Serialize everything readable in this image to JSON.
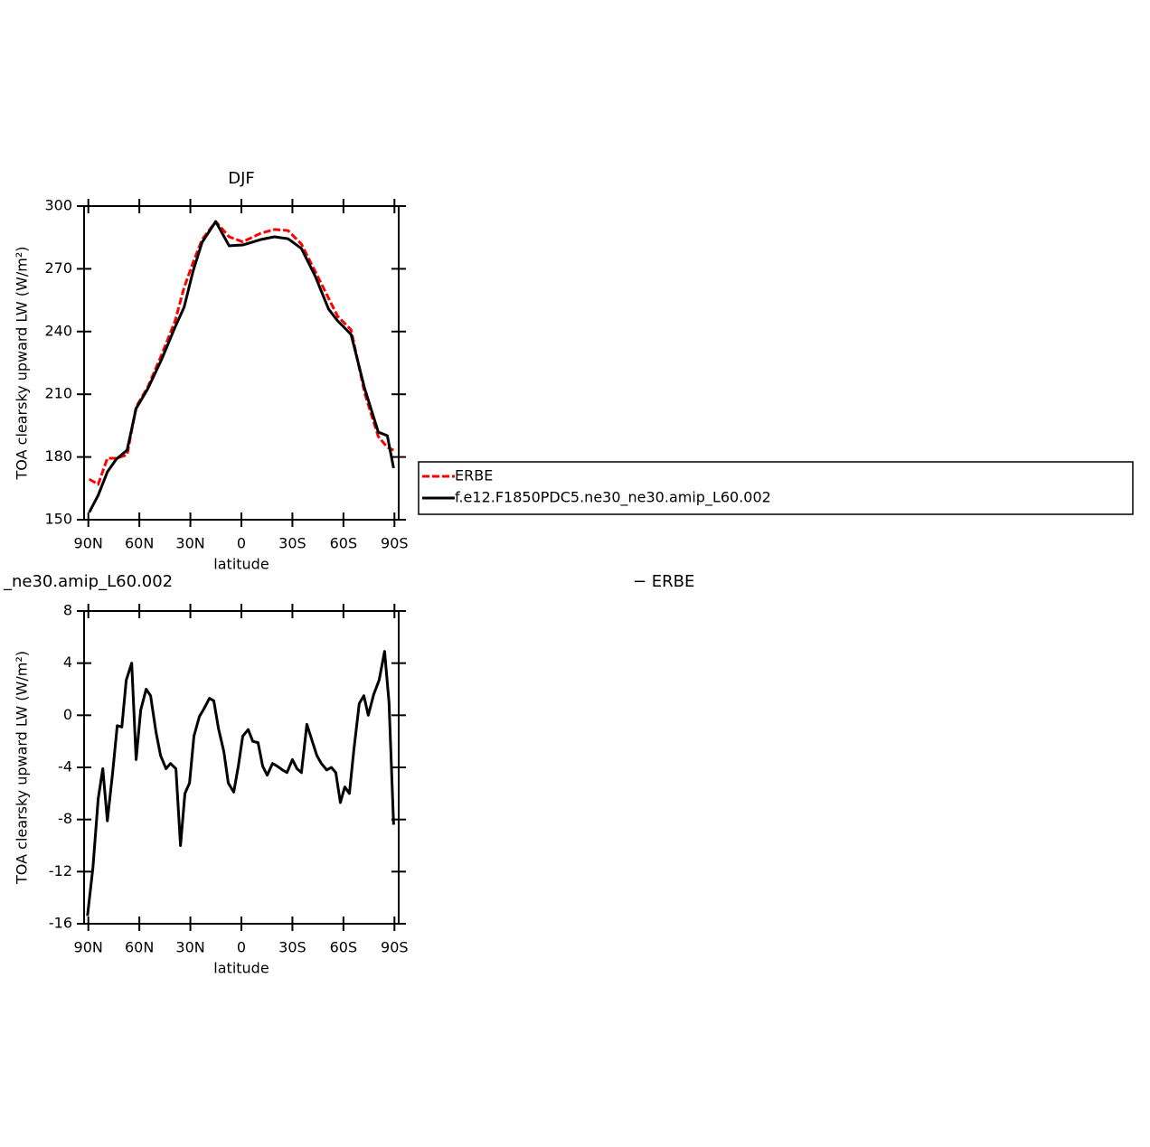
{
  "chart_data": [
    {
      "type": "line",
      "title": "DJF",
      "ylabel": "TOA clearsky upward LW (W/m²)",
      "xlabel": "latitude",
      "x": [
        89.5,
        84.2,
        78.8,
        73.5,
        67.2,
        61.9,
        55.0,
        47.0,
        39.0,
        33.7,
        28.4,
        23.1,
        15.1,
        7.2,
        -0.8,
        -11.4,
        -19.4,
        -27.4,
        -35.3,
        -43.3,
        -51.3,
        -56.6,
        -64.5,
        -72.5,
        -80.5,
        -85.8,
        -89.5
      ],
      "xlim": [
        92.5,
        -92.5
      ],
      "xticks": [
        {
          "value": 90,
          "label": "90N"
        },
        {
          "value": 60,
          "label": "60N"
        },
        {
          "value": 30,
          "label": "30N"
        },
        0,
        {
          "value": -30,
          "label": "30S"
        },
        {
          "value": -60,
          "label": "60S"
        },
        {
          "value": -90,
          "label": "90S"
        }
      ],
      "ylim": [
        150,
        300
      ],
      "yticks": [
        150,
        180,
        210,
        240,
        270,
        300
      ],
      "legend": "right",
      "series": [
        {
          "name": "ERBE",
          "color": "#ff0000",
          "linestyle": "dashed",
          "values": [
            169.4,
            166.9,
            179.4,
            179.4,
            181.0,
            204.0,
            213.5,
            228.7,
            245.0,
            261.0,
            273.0,
            284.0,
            292.6,
            285.3,
            282.9,
            287.0,
            288.8,
            288.3,
            281.8,
            268.9,
            255.9,
            247.3,
            240.8,
            210.5,
            189.8,
            184.6,
            183.3
          ]
        },
        {
          "name": "f.e12.F1850PDC5.ne30_ne30.amip_L60.002",
          "color": "#000000",
          "linestyle": "solid",
          "values": [
            153.5,
            161.7,
            172.9,
            179.0,
            183.3,
            203.2,
            212.7,
            226.5,
            242.1,
            251.6,
            268.9,
            282.7,
            292.6,
            281.0,
            281.4,
            284.0,
            285.3,
            284.4,
            279.7,
            266.7,
            250.7,
            245.1,
            238.6,
            212.7,
            191.9,
            190.2,
            174.7
          ]
        }
      ]
    },
    {
      "type": "line",
      "left_title": "_ne30.amip_L60.002",
      "right_title": "− ERBE",
      "ylabel": "TOA clearsky upward LW (W/m²)",
      "xlabel": "latitude",
      "x": [
        90.5,
        87.3,
        84.2,
        81.5,
        78.8,
        75.7,
        73.0,
        70.3,
        67.7,
        64.5,
        61.9,
        59.2,
        56.0,
        53.4,
        50.2,
        47.5,
        44.3,
        41.7,
        38.5,
        35.8,
        33.2,
        30.5,
        27.9,
        24.7,
        22.0,
        18.8,
        16.2,
        13.5,
        10.3,
        7.7,
        4.5,
        1.8,
        -0.8,
        -4.0,
        -6.7,
        -9.8,
        -12.5,
        -15.2,
        -18.3,
        -21.0,
        -24.2,
        -26.8,
        -30.0,
        -32.7,
        -35.3,
        -38.5,
        -41.2,
        -44.4,
        -47.0,
        -50.2,
        -52.9,
        -55.5,
        -58.2,
        -60.8,
        -63.5,
        -66.1,
        -69.3,
        -72.0,
        -74.6,
        -77.8,
        -81.0,
        -84.2,
        -86.8,
        -89.5
      ],
      "xlim": [
        92.5,
        -92.5
      ],
      "xticks": [
        {
          "value": 90,
          "label": "90N"
        },
        {
          "value": 60,
          "label": "60N"
        },
        {
          "value": 30,
          "label": "30N"
        },
        0,
        {
          "value": -30,
          "label": "30S"
        },
        {
          "value": -60,
          "label": "60S"
        },
        {
          "value": -90,
          "label": "90S"
        }
      ],
      "ylim": [
        -16,
        8
      ],
      "yticks": [
        -16,
        -12,
        -8,
        -4,
        0,
        4,
        8
      ],
      "series": [
        {
          "color": "#000000",
          "linestyle": "solid",
          "values": [
            -15.4,
            -11.7,
            -6.4,
            -4.1,
            -8.1,
            -4.4,
            -0.8,
            -0.9,
            2.7,
            4.0,
            -3.4,
            0.4,
            2.0,
            1.5,
            -1.3,
            -3.1,
            -4.1,
            -3.7,
            -4.1,
            -10.0,
            -6.0,
            -5.2,
            -1.6,
            -0.1,
            0.5,
            1.3,
            1.1,
            -1.0,
            -2.8,
            -5.2,
            -5.9,
            -3.9,
            -1.6,
            -1.1,
            -2.0,
            -2.1,
            -3.9,
            -4.6,
            -3.7,
            -3.9,
            -4.2,
            -4.4,
            -3.4,
            -4.1,
            -4.4,
            -0.7,
            -1.8,
            -3.1,
            -3.7,
            -4.2,
            -4.0,
            -4.4,
            -6.7,
            -5.5,
            -6.0,
            -2.7,
            0.9,
            1.5,
            0,
            1.6,
            2.7,
            4.9,
            1.0,
            -8.4
          ]
        }
      ]
    }
  ]
}
